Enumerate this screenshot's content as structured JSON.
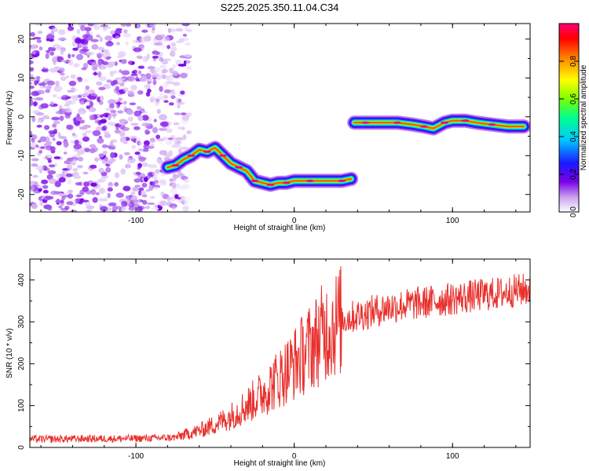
{
  "chart_data": [
    {
      "type": "heatmap",
      "title": "S225.2025.350.11.04.C34",
      "xlabel": "Height of straight line (km)",
      "ylabel": "Frequency (Hz)",
      "xlim": [
        -167,
        149
      ],
      "ylim": [
        -24.5,
        24
      ],
      "xticks": [
        -100,
        0,
        100
      ],
      "xtick_labels": [
        "-100",
        "0",
        "100"
      ],
      "yticks": [
        20,
        10,
        0,
        -10,
        -20
      ],
      "ytick_labels": [
        "20",
        "10",
        "0",
        "-10",
        "-20"
      ],
      "colorbar": {
        "label": "Normalized spectral amplitude",
        "range": [
          0,
          1
        ],
        "ticks": [
          0,
          0.2,
          0.4,
          0.6,
          0.8
        ],
        "tick_labels": [
          "0.0",
          "0.2",
          "0.4",
          "0.6",
          "0.8"
        ]
      },
      "features": [
        {
          "name": "noise-region",
          "x_range": [
            -167,
            -78
          ],
          "freq_range": [
            -24.5,
            24
          ],
          "amplitude": 0.15
        },
        {
          "name": "ridge-1",
          "points": [
            [
              -80,
              -13
            ],
            [
              -75,
              -12.5
            ],
            [
              -70,
              -11
            ],
            [
              -65,
              -10
            ],
            [
              -60,
              -8.5
            ],
            [
              -55,
              -9
            ],
            [
              -50,
              -8
            ],
            [
              -45,
              -10
            ],
            [
              -40,
              -12
            ],
            [
              -35,
              -13
            ],
            [
              -30,
              -14
            ],
            [
              -25,
              -16.5
            ],
            [
              -20,
              -17
            ],
            [
              -15,
              -17.5
            ],
            [
              -10,
              -17
            ],
            [
              -5,
              -17
            ],
            [
              0,
              -16.5
            ],
            [
              10,
              -16.5
            ],
            [
              20,
              -16.5
            ],
            [
              30,
              -16.5
            ],
            [
              36,
              -16
            ]
          ],
          "peak_amplitude": 1.0
        },
        {
          "name": "ridge-2",
          "points": [
            [
              38,
              -1.5
            ],
            [
              45,
              -1.5
            ],
            [
              55,
              -1.5
            ],
            [
              65,
              -1.5
            ],
            [
              75,
              -2
            ],
            [
              82,
              -2.5
            ],
            [
              88,
              -3
            ],
            [
              95,
              -1.5
            ],
            [
              100,
              -1
            ],
            [
              108,
              -1
            ],
            [
              115,
              -1.5
            ],
            [
              125,
              -2
            ],
            [
              135,
              -2.5
            ],
            [
              145,
              -2.5
            ]
          ],
          "peak_amplitude": 1.0
        }
      ]
    },
    {
      "type": "line",
      "xlabel": "Height of straight line (km)",
      "ylabel": "SNR (10 * v/v)",
      "xlim": [
        -167,
        149
      ],
      "ylim": [
        0,
        450
      ],
      "xticks": [
        -100,
        0,
        100
      ],
      "xtick_labels": [
        "-100",
        "0",
        "100"
      ],
      "yticks": [
        0,
        100,
        200,
        300,
        400
      ],
      "ytick_labels": [
        "0",
        "100",
        "200",
        "300",
        "400"
      ],
      "series": [
        {
          "name": "SNR",
          "color": "#e8302c",
          "x": [
            -167,
            -150,
            -130,
            -110,
            -90,
            -75,
            -70,
            -60,
            -50,
            -40,
            -30,
            -20,
            -10,
            0,
            10,
            20,
            30,
            40,
            50,
            60,
            70,
            80,
            90,
            100,
            110,
            120,
            130,
            140,
            149
          ],
          "y": [
            20,
            20,
            21,
            21,
            22,
            24,
            30,
            40,
            55,
            75,
            100,
            130,
            165,
            200,
            240,
            280,
            305,
            315,
            325,
            335,
            340,
            345,
            350,
            355,
            360,
            365,
            368,
            375,
            378
          ]
        }
      ]
    }
  ]
}
